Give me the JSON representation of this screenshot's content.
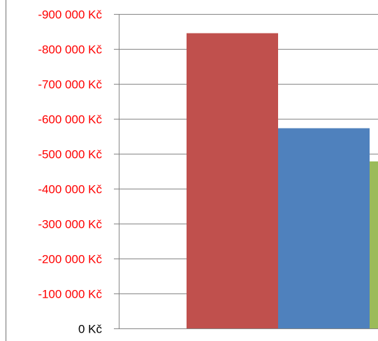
{
  "chart_data": {
    "type": "bar",
    "title": "",
    "xlabel": "",
    "ylabel": "",
    "categories": [
      ""
    ],
    "ylim": [
      0,
      -900000
    ],
    "yticks": [
      {
        "value": 0,
        "label": "0 Kč",
        "color": "#000000"
      },
      {
        "value": -100000,
        "label": "-100 000 Kč",
        "color": "#ff0000"
      },
      {
        "value": -200000,
        "label": "-200 000 Kč",
        "color": "#ff0000"
      },
      {
        "value": -300000,
        "label": "-300 000 Kč",
        "color": "#ff0000"
      },
      {
        "value": -400000,
        "label": "-400 000 Kč",
        "color": "#ff0000"
      },
      {
        "value": -500000,
        "label": "-500 000 Kč",
        "color": "#ff0000"
      },
      {
        "value": -600000,
        "label": "-600 000 Kč",
        "color": "#ff0000"
      },
      {
        "value": -700000,
        "label": "-700 000 Kč",
        "color": "#ff0000"
      },
      {
        "value": -800000,
        "label": "-800 000 Kč",
        "color": "#ff0000"
      },
      {
        "value": -900000,
        "label": "-900 000 Kč",
        "color": "#ff0000"
      }
    ],
    "series": [
      {
        "values": [
          -845000
        ],
        "color": "#c0504d"
      },
      {
        "values": [
          -573000
        ],
        "color": "#4f81bd"
      },
      {
        "values": [
          -478000
        ],
        "color": "#9bbb59"
      }
    ],
    "grid": true,
    "legend": "none"
  }
}
